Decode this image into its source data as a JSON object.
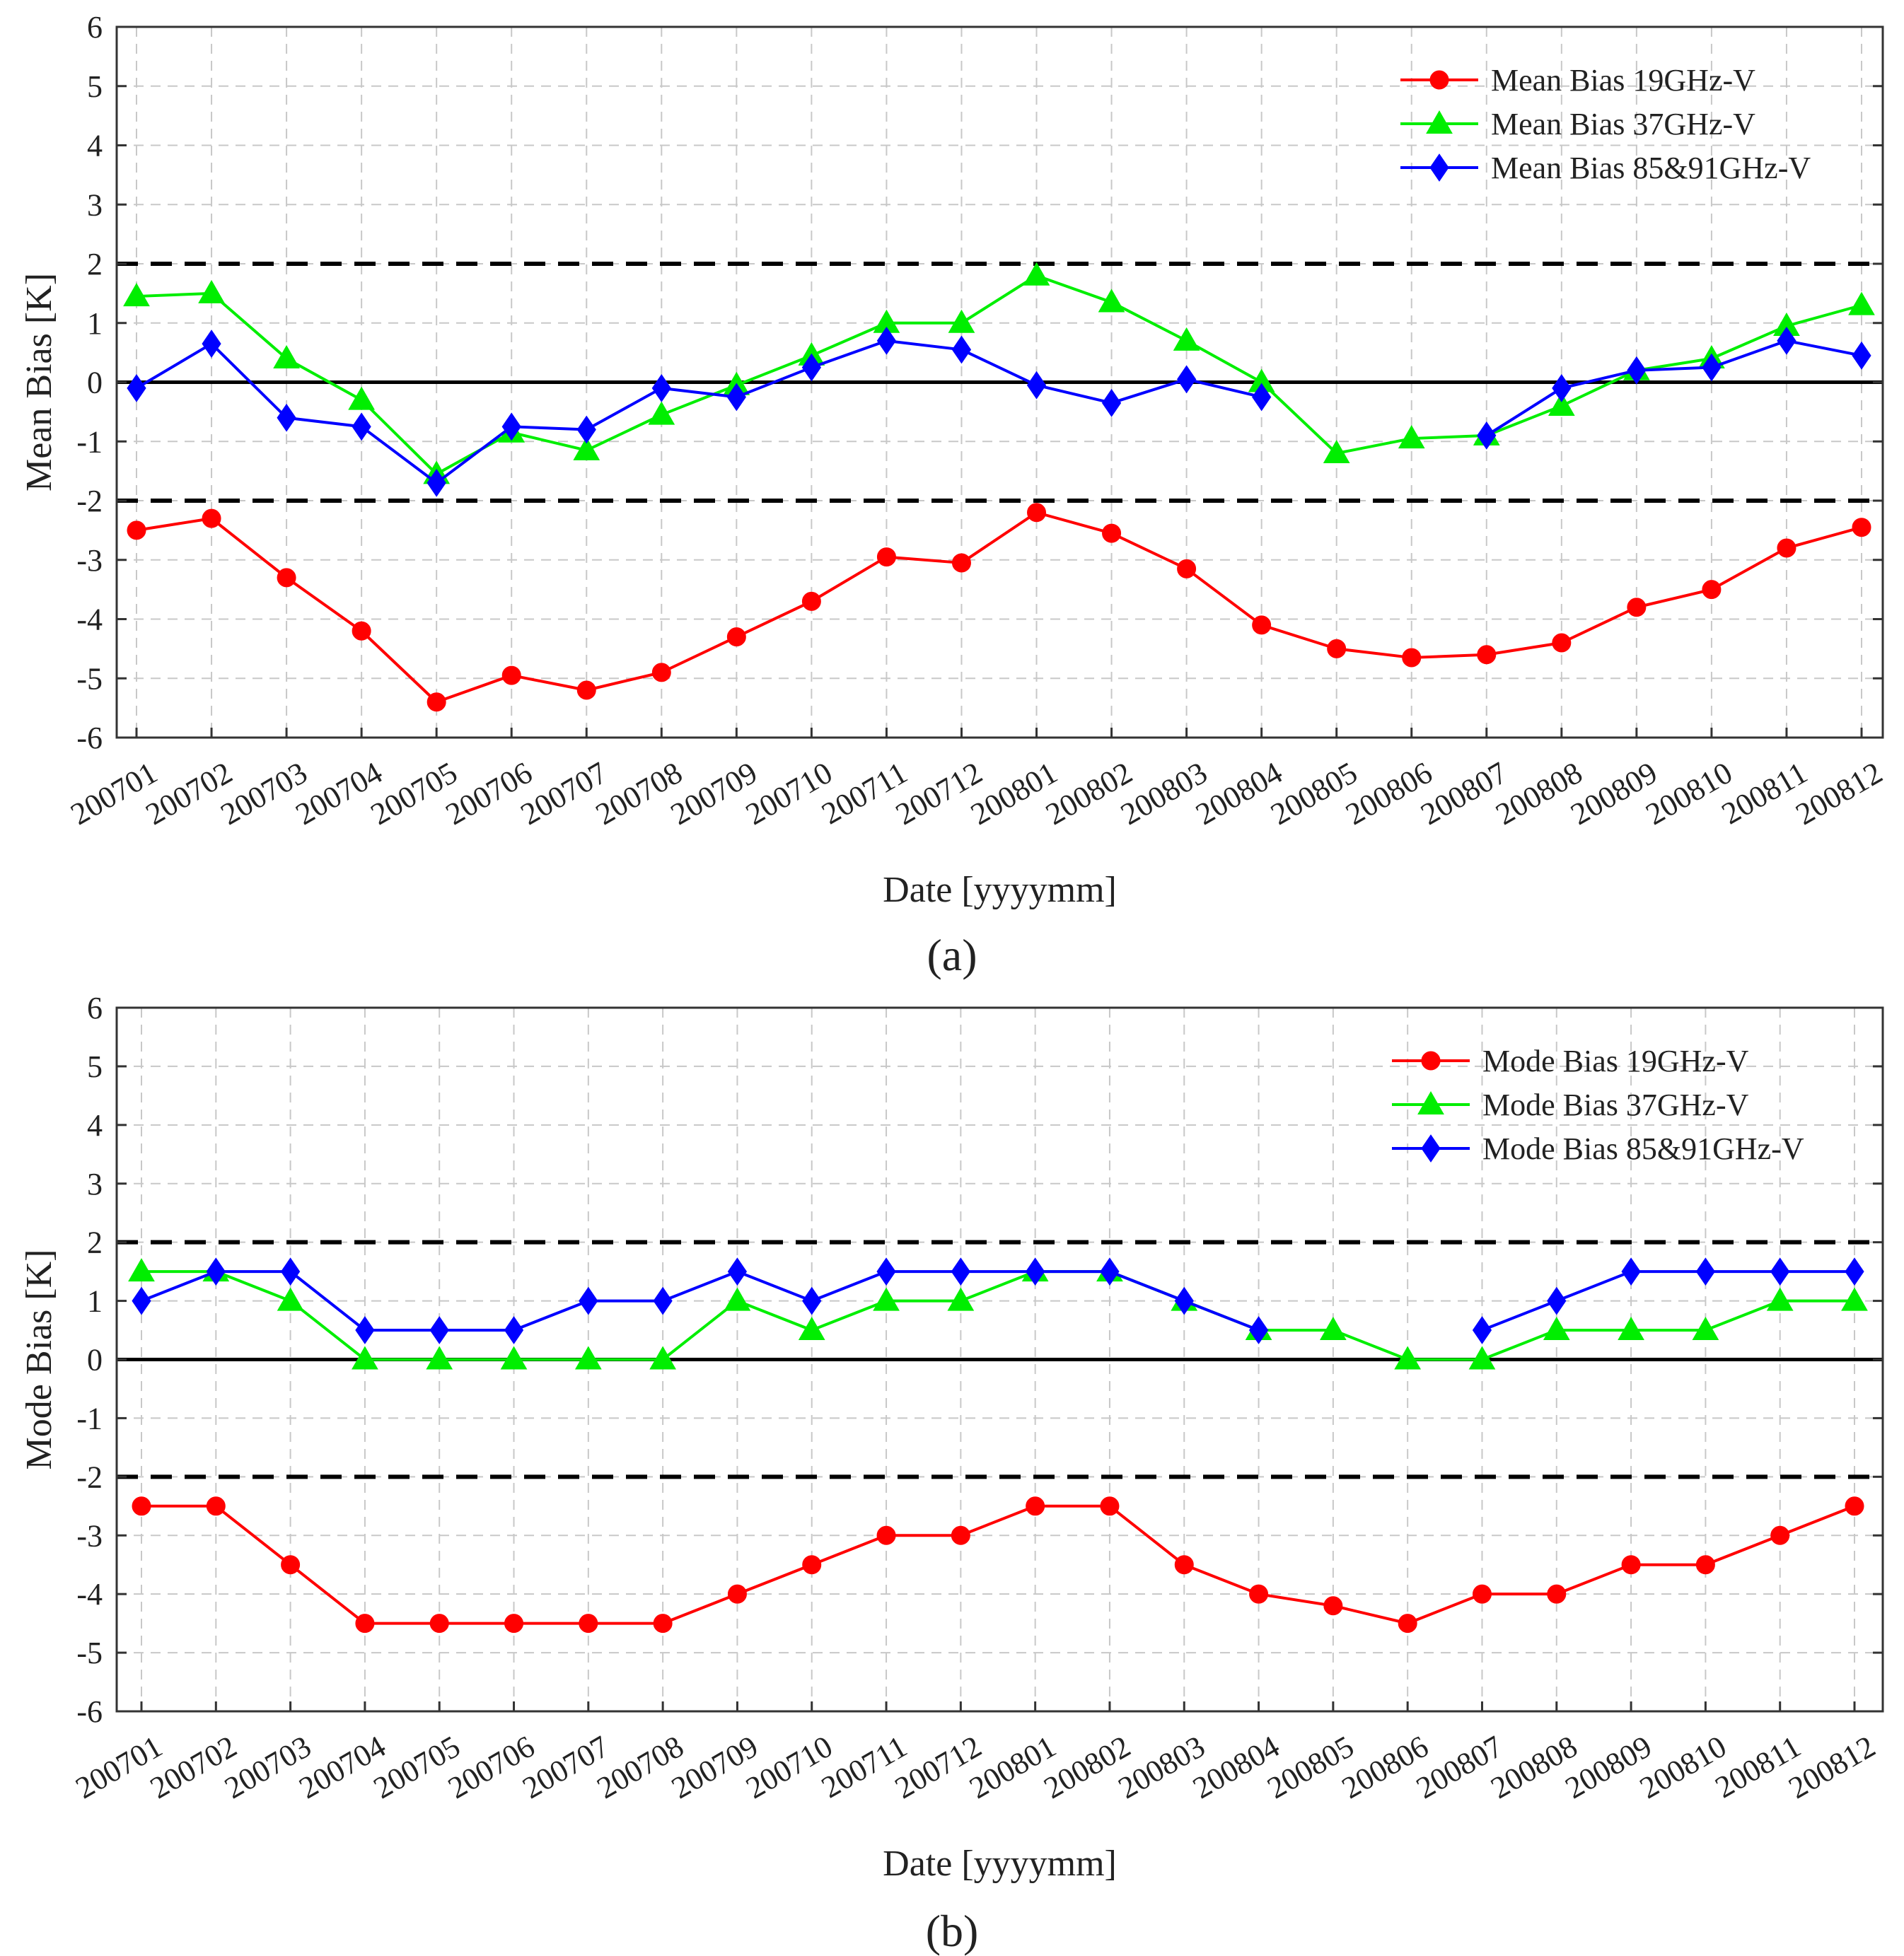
{
  "panel_labels": [
    "(a)",
    "(b)"
  ],
  "colors": {
    "s19": "#ff0000",
    "s37": "#00ee00",
    "s85": "#0000ff",
    "axis": "#000000",
    "grid": "#c8c8c8"
  },
  "chart_data": [
    {
      "type": "line",
      "panel": "(a)",
      "title": "",
      "xlabel": "Date [yyyymm]",
      "ylabel": "Mean Bias [K]",
      "ylim": [
        -6,
        6
      ],
      "yticks": [
        -6,
        -5,
        -4,
        -3,
        -2,
        -1,
        0,
        1,
        2,
        3,
        4,
        5,
        6
      ],
      "grid": true,
      "legend_position": "top-right",
      "reference_lines": {
        "solid": [
          0
        ],
        "dashed": [
          2,
          -2
        ]
      },
      "categories": [
        "200701",
        "200702",
        "200703",
        "200704",
        "200705",
        "200706",
        "200707",
        "200708",
        "200709",
        "200710",
        "200711",
        "200712",
        "200801",
        "200802",
        "200803",
        "200804",
        "200805",
        "200806",
        "200807",
        "200808",
        "200809",
        "200810",
        "200811",
        "200812"
      ],
      "series": [
        {
          "name": "Mean Bias 19GHz-V",
          "marker": "circle",
          "color": "#ff0000",
          "values": [
            -2.5,
            -2.3,
            -3.3,
            -4.2,
            -5.4,
            -4.95,
            -5.2,
            -4.9,
            -4.3,
            -3.7,
            -2.95,
            -3.05,
            -2.2,
            -2.55,
            -3.15,
            -4.1,
            -4.5,
            -4.65,
            -4.6,
            -4.4,
            -3.8,
            -3.5,
            -2.8,
            -2.45
          ]
        },
        {
          "name": "Mean Bias 37GHz-V",
          "marker": "triangle",
          "color": "#00ee00",
          "values": [
            1.45,
            1.5,
            0.4,
            -0.3,
            -1.55,
            -0.85,
            -1.15,
            -0.55,
            -0.05,
            0.45,
            1.0,
            1.0,
            1.8,
            1.35,
            0.7,
            0.0,
            -1.2,
            -0.95,
            -0.9,
            -0.4,
            0.2,
            0.4,
            0.95,
            1.3
          ]
        },
        {
          "name": "Mean Bias 85&91GHz-V",
          "marker": "diamond",
          "color": "#0000ff",
          "values": [
            -0.1,
            0.65,
            -0.6,
            -0.75,
            -1.7,
            -0.75,
            -0.8,
            -0.1,
            -0.25,
            0.25,
            0.7,
            0.55,
            -0.05,
            -0.35,
            0.05,
            -0.25,
            null,
            null,
            -0.9,
            -0.1,
            0.2,
            0.25,
            0.7,
            0.45
          ]
        }
      ]
    },
    {
      "type": "line",
      "panel": "(b)",
      "title": "",
      "xlabel": "Date [yyyymm]",
      "ylabel": "Mode Bias [K]",
      "ylim": [
        -6,
        6
      ],
      "yticks": [
        -6,
        -5,
        -4,
        -3,
        -2,
        -1,
        0,
        1,
        2,
        3,
        4,
        5,
        6
      ],
      "grid": true,
      "legend_position": "top-right",
      "reference_lines": {
        "solid": [
          0
        ],
        "dashed": [
          2,
          -2
        ]
      },
      "categories": [
        "200701",
        "200702",
        "200703",
        "200704",
        "200705",
        "200706",
        "200707",
        "200708",
        "200709",
        "200710",
        "200711",
        "200712",
        "200801",
        "200802",
        "200803",
        "200804",
        "200805",
        "200806",
        "200807",
        "200808",
        "200809",
        "200810",
        "200811",
        "200812"
      ],
      "series": [
        {
          "name": "Mode Bias 19GHz-V",
          "marker": "circle",
          "color": "#ff0000",
          "values": [
            -2.5,
            -2.5,
            -3.5,
            -4.5,
            -4.5,
            -4.5,
            -4.5,
            -4.5,
            -4.0,
            -3.5,
            -3.0,
            -3.0,
            -2.5,
            -2.5,
            -3.5,
            -4.0,
            -4.2,
            -4.5,
            -4.0,
            -4.0,
            -3.5,
            -3.5,
            -3.0,
            -2.5
          ]
        },
        {
          "name": "Mode Bias 37GHz-V",
          "marker": "triangle",
          "color": "#00ee00",
          "values": [
            1.5,
            1.5,
            1.0,
            0.0,
            0.0,
            0.0,
            0.0,
            0.0,
            1.0,
            0.5,
            1.0,
            1.0,
            1.5,
            1.5,
            1.0,
            0.5,
            0.5,
            0.0,
            0.0,
            0.5,
            0.5,
            0.5,
            1.0,
            1.0
          ]
        },
        {
          "name": "Mode Bias 85&91GHz-V",
          "marker": "diamond",
          "color": "#0000ff",
          "values": [
            1.0,
            1.5,
            1.5,
            0.5,
            0.5,
            0.5,
            1.0,
            1.0,
            1.5,
            1.0,
            1.5,
            1.5,
            1.5,
            1.5,
            1.0,
            0.5,
            null,
            null,
            0.5,
            1.0,
            1.5,
            1.5,
            1.5,
            1.5
          ]
        }
      ]
    }
  ]
}
